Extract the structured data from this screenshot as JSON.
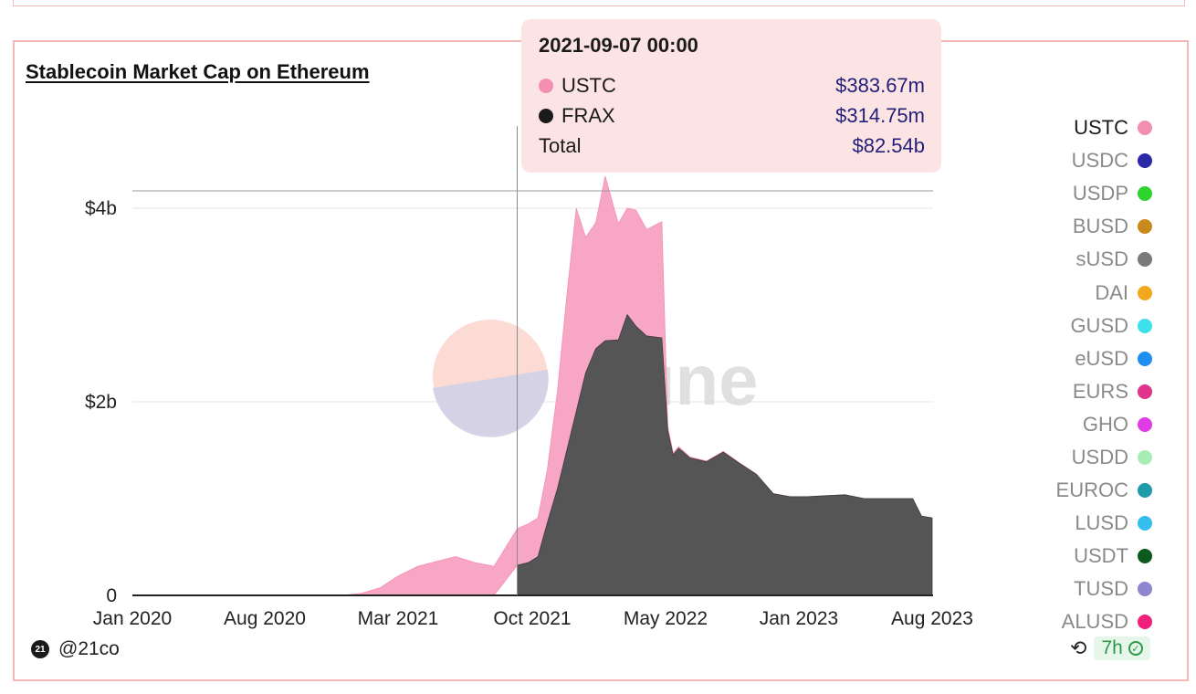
{
  "title": "Stablecoin Market Cap on Ethereum",
  "watermark": "Dune",
  "tooltip": {
    "date": "2021-09-07 00:00",
    "rows": [
      {
        "name": "USTC",
        "value": "$383.67m",
        "color": "#f48fb1"
      },
      {
        "name": "FRAX",
        "value": "$314.75m",
        "color": "#1a1a1a"
      }
    ],
    "total_label": "Total",
    "total_value": "$82.54b"
  },
  "legend": [
    {
      "name": "USTC",
      "color": "#f48fb1",
      "active": true
    },
    {
      "name": "USDC",
      "color": "#2a2aa8"
    },
    {
      "name": "USDP",
      "color": "#2ed32e"
    },
    {
      "name": "BUSD",
      "color": "#c98a1c"
    },
    {
      "name": "sUSD",
      "color": "#7a7a7a"
    },
    {
      "name": "DAI",
      "color": "#f2a81d"
    },
    {
      "name": "GUSD",
      "color": "#3ee0ea"
    },
    {
      "name": "eUSD",
      "color": "#1e8ef0"
    },
    {
      "name": "EURS",
      "color": "#e0348c"
    },
    {
      "name": "GHO",
      "color": "#e03ce6"
    },
    {
      "name": "USDD",
      "color": "#a8ecb6"
    },
    {
      "name": "EUROC",
      "color": "#1e9aa8"
    },
    {
      "name": "LUSD",
      "color": "#34bef0"
    },
    {
      "name": "USDT",
      "color": "#0c5a1c"
    },
    {
      "name": "TUSD",
      "color": "#8e86d0"
    },
    {
      "name": "ALUSD",
      "color": "#f0207a"
    }
  ],
  "footer": {
    "author": "@21co",
    "badge_text": "21",
    "age": "7h",
    "refresh_icon": "refresh-icon",
    "verified_icon": "check-icon"
  },
  "chart_data": {
    "type": "area",
    "title": "Stablecoin Market Cap on Ethereum",
    "x_ticks": [
      "Jan 2020",
      "Aug 2020",
      "Mar 2021",
      "Oct 2021",
      "May 2022",
      "Jan 2023",
      "Aug 2023"
    ],
    "y_ticks": [
      "0",
      "$2b",
      "$4b"
    ],
    "y_unit": "billions USD",
    "ylim": [
      0,
      4.8
    ],
    "xlim": [
      "2020-01-01",
      "2023-08-01"
    ],
    "stacked": true,
    "grid": true,
    "hover_date": "2021-09-07",
    "series": [
      {
        "name": "FRAX",
        "color": "#555555",
        "points": [
          [
            "2021-09-07",
            0.31
          ],
          [
            "2021-09-25",
            0.34
          ],
          [
            "2021-10-10",
            0.4
          ],
          [
            "2021-10-25",
            0.75
          ],
          [
            "2021-11-10",
            1.1
          ],
          [
            "2021-11-25",
            1.5
          ],
          [
            "2021-12-10",
            1.9
          ],
          [
            "2021-12-25",
            2.3
          ],
          [
            "2022-01-10",
            2.55
          ],
          [
            "2022-01-25",
            2.63
          ],
          [
            "2022-02-15",
            2.64
          ],
          [
            "2022-03-01",
            2.9
          ],
          [
            "2022-03-15",
            2.78
          ],
          [
            "2022-04-01",
            2.68
          ],
          [
            "2022-04-25",
            2.66
          ],
          [
            "2022-05-05",
            1.7
          ],
          [
            "2022-05-15",
            1.45
          ],
          [
            "2022-05-25",
            1.52
          ],
          [
            "2022-06-15",
            1.42
          ],
          [
            "2022-07-15",
            1.38
          ],
          [
            "2022-08-15",
            1.48
          ],
          [
            "2022-09-15",
            1.36
          ],
          [
            "2022-10-15",
            1.25
          ],
          [
            "2022-11-15",
            1.05
          ],
          [
            "2022-12-15",
            1.02
          ],
          [
            "2023-01-15",
            1.02
          ],
          [
            "2023-02-15",
            1.03
          ],
          [
            "2023-03-15",
            1.04
          ],
          [
            "2023-04-15",
            1.0
          ],
          [
            "2023-05-15",
            1.0
          ],
          [
            "2023-06-15",
            1.0
          ],
          [
            "2023-07-01",
            1.0
          ],
          [
            "2023-07-15",
            0.82
          ],
          [
            "2023-08-01",
            0.8
          ]
        ]
      },
      {
        "name": "USTC",
        "color": "#f7a6c6",
        "points": [
          [
            "2020-01-01",
            0
          ],
          [
            "2020-12-01",
            0
          ],
          [
            "2021-01-01",
            0.02
          ],
          [
            "2021-02-01",
            0.08
          ],
          [
            "2021-03-01",
            0.2
          ],
          [
            "2021-04-01",
            0.3
          ],
          [
            "2021-05-01",
            0.35
          ],
          [
            "2021-06-01",
            0.4
          ],
          [
            "2021-07-01",
            0.34
          ],
          [
            "2021-08-01",
            0.3
          ],
          [
            "2021-09-07",
            0.38
          ],
          [
            "2021-09-25",
            0.4
          ],
          [
            "2021-10-10",
            0.4
          ],
          [
            "2021-10-25",
            0.55
          ],
          [
            "2021-11-10",
            1.0
          ],
          [
            "2021-11-25",
            1.6
          ],
          [
            "2021-12-10",
            2.1
          ],
          [
            "2021-12-25",
            1.4
          ],
          [
            "2022-01-10",
            1.3
          ],
          [
            "2022-01-25",
            1.7
          ],
          [
            "2022-02-15",
            1.2
          ],
          [
            "2022-03-01",
            1.1
          ],
          [
            "2022-03-15",
            1.2
          ],
          [
            "2022-04-01",
            1.1
          ],
          [
            "2022-04-25",
            1.2
          ],
          [
            "2022-05-05",
            0.05
          ],
          [
            "2022-05-15",
            0.02
          ],
          [
            "2022-06-15",
            0.01
          ],
          [
            "2023-01-01",
            0.0
          ],
          [
            "2023-07-01",
            0.0
          ],
          [
            "2023-08-01",
            0.0
          ]
        ]
      }
    ]
  }
}
